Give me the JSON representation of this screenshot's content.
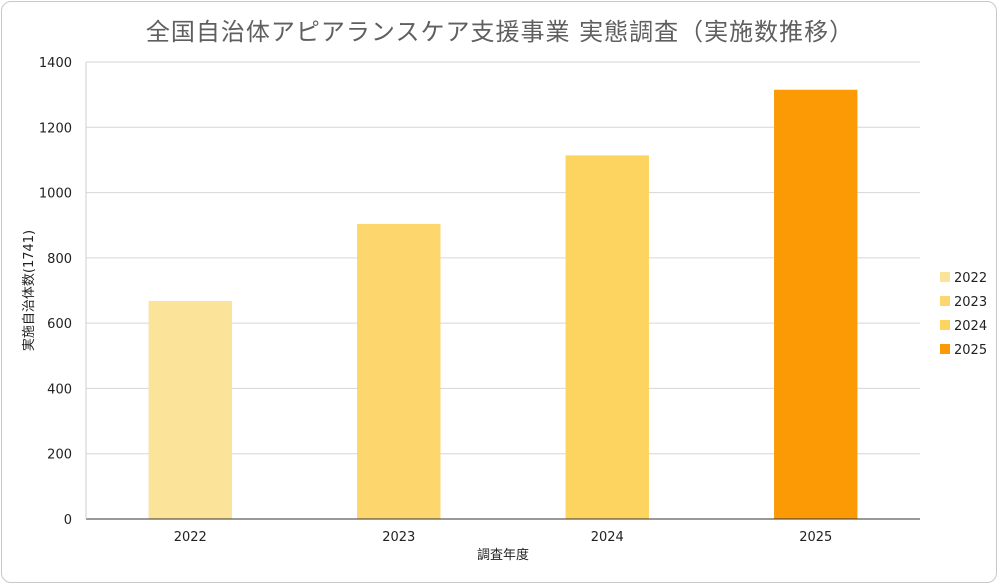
{
  "chart_data": {
    "type": "bar",
    "title": "全国自治体アピアランスケア支援事業 実態調査（実施数推移）",
    "xlabel": "調査年度",
    "ylabel": "実施自治体数(1741)",
    "categories": [
      "2022",
      "2023",
      "2024",
      "2025"
    ],
    "values": [
      668,
      904,
      1114,
      1315
    ],
    "ylim": [
      0,
      1400
    ],
    "yticks": [
      0,
      200,
      400,
      600,
      800,
      1000,
      1200,
      1400
    ],
    "grid": true,
    "legend_position": "right",
    "legend": [
      "2022",
      "2023",
      "2024",
      "2025"
    ],
    "colors": [
      "#fbe39a",
      "#fdd66d",
      "#fdd45f",
      "#fb9a05"
    ]
  }
}
